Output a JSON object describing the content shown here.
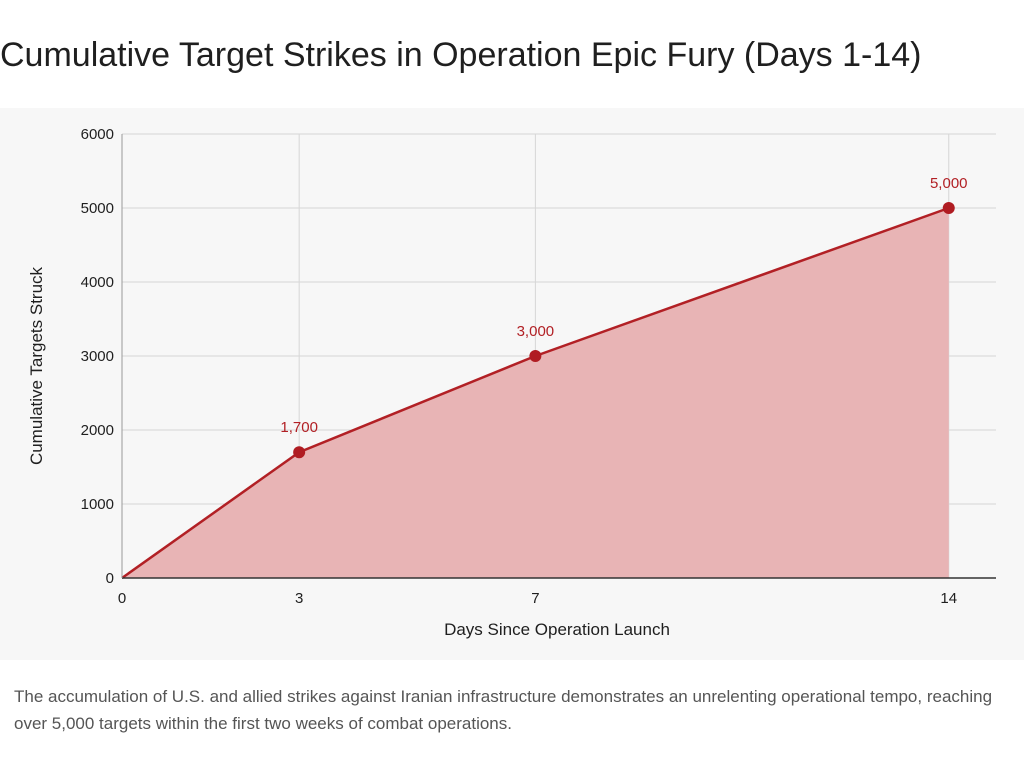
{
  "header": {
    "title": "Cumulative Target Strikes in Operation Epic Fury (Days 1-14)"
  },
  "caption": "The accumulation of U.S. and allied strikes against Iranian infrastructure demonstrates an unrelenting operational tempo, reaching over 5,000 targets within the first two weeks of combat operations.",
  "colors": {
    "line": "#b22025",
    "fill": "#e8b4b5",
    "point": "#b01c22",
    "grid": "#d6d6d6",
    "panel": "#f7f7f7"
  },
  "chart_data": {
    "type": "area",
    "title": "Cumulative Target Strikes in Operation Epic Fury (Days 1-14)",
    "xlabel": "Days Since Operation Launch",
    "ylabel": "Cumulative Targets Struck",
    "x": [
      0,
      3,
      7,
      14
    ],
    "values": [
      0,
      1700,
      3000,
      5000
    ],
    "xticks": [
      0,
      3,
      7,
      14
    ],
    "yticks": [
      0,
      1000,
      2000,
      3000,
      4000,
      5000,
      6000
    ],
    "xlim": [
      0,
      14.8
    ],
    "ylim": [
      0,
      6000
    ],
    "data_labels": [
      {
        "x": 3,
        "y": 1700,
        "text": "1,700"
      },
      {
        "x": 7,
        "y": 3000,
        "text": "3,000"
      },
      {
        "x": 14,
        "y": 5000,
        "text": "5,000"
      }
    ],
    "grid": true,
    "legend": "none"
  }
}
